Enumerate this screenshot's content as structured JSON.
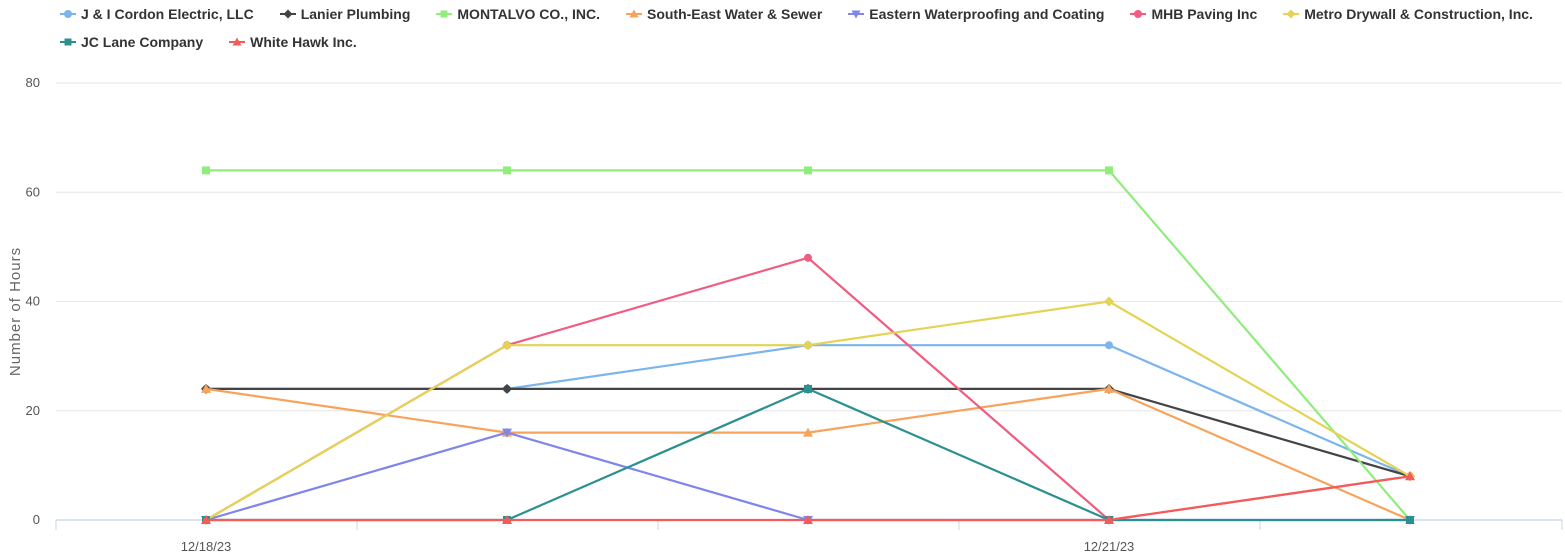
{
  "chart_data": {
    "type": "line",
    "title": "",
    "xlabel": "",
    "ylabel": "Number of Hours",
    "x_tick_labels": [
      "12/18/23",
      "",
      "",
      "12/21/23",
      ""
    ],
    "ylim": [
      0,
      80
    ],
    "yticks": [
      0,
      20,
      40,
      60,
      80
    ],
    "grid": true,
    "legend_position": "top",
    "series": [
      {
        "name": "J & I Cordon Electric, LLC",
        "color": "#7cb5ec",
        "marker": "circle",
        "values": [
          24,
          24,
          32,
          32,
          8
        ]
      },
      {
        "name": "Lanier Plumbing",
        "color": "#434348",
        "marker": "diamond",
        "values": [
          24,
          24,
          24,
          24,
          8
        ]
      },
      {
        "name": "MONTALVO CO., INC.",
        "color": "#90ed7d",
        "marker": "square",
        "values": [
          64,
          64,
          64,
          64,
          0
        ]
      },
      {
        "name": "South-East Water & Sewer",
        "color": "#f7a35c",
        "marker": "triangle",
        "values": [
          24,
          16,
          16,
          24,
          0
        ]
      },
      {
        "name": "Eastern Waterproofing and Coating",
        "color": "#8085e9",
        "marker": "triangle-down",
        "values": [
          0,
          16,
          0,
          0,
          0
        ]
      },
      {
        "name": "MHB Paving Inc",
        "color": "#f15c80",
        "marker": "circle",
        "values": [
          0,
          32,
          48,
          0,
          8
        ]
      },
      {
        "name": "Metro Drywall & Construction, Inc.",
        "color": "#e4d354",
        "marker": "diamond",
        "values": [
          0,
          32,
          32,
          40,
          8
        ]
      },
      {
        "name": "JC Lane Company",
        "color": "#2b908f",
        "marker": "square",
        "values": [
          0,
          0,
          24,
          0,
          0
        ]
      },
      {
        "name": "White Hawk Inc.",
        "color": "#f45b5b",
        "marker": "triangle",
        "values": [
          0,
          0,
          0,
          0,
          8
        ]
      }
    ]
  }
}
